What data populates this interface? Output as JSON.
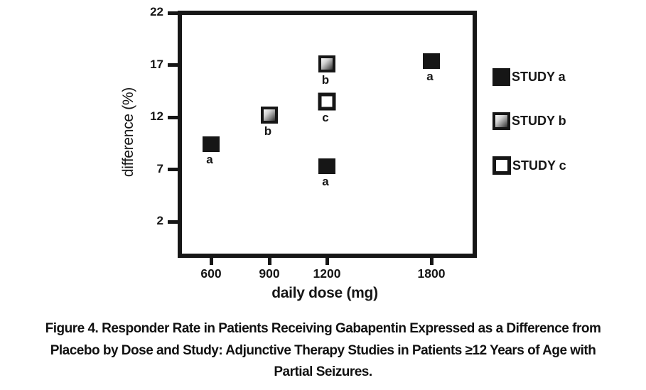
{
  "figure": {
    "caption_lines": [
      "Figure 4. Responder Rate in Patients Receiving Gabapentin Expressed as a Difference from",
      "Placebo by Dose and Study: Adjunctive Therapy Studies in Patients ≥12 Years of Age with",
      "Partial Seizures."
    ]
  },
  "chart_data": {
    "type": "scatter",
    "title": "",
    "xlabel": "daily dose (mg)",
    "ylabel": "difference (%)",
    "x_ticks": [
      600,
      900,
      1200,
      1800
    ],
    "y_ticks": [
      22,
      17,
      12,
      7,
      2
    ],
    "xlim": [
      450,
      2030
    ],
    "ylim": [
      -1,
      22.3
    ],
    "grid": false,
    "legend_position": "right",
    "series": [
      {
        "name": "STUDY a",
        "marker": "solid-black-square",
        "point_label": "a",
        "points": [
          {
            "dose": 600,
            "value": 9.4
          },
          {
            "dose": 1200,
            "value": 7.3
          },
          {
            "dose": 1800,
            "value": 17.4
          }
        ]
      },
      {
        "name": "STUDY b",
        "marker": "gradient-square",
        "point_label": "b",
        "points": [
          {
            "dose": 900,
            "value": 12.2
          },
          {
            "dose": 1200,
            "value": 17.1
          }
        ]
      },
      {
        "name": "STUDY c",
        "marker": "open-square",
        "point_label": "c",
        "points": [
          {
            "dose": 1200,
            "value": 13.5
          }
        ]
      }
    ],
    "colors": {
      "ink": "#161616",
      "background": "#ffffff"
    }
  }
}
